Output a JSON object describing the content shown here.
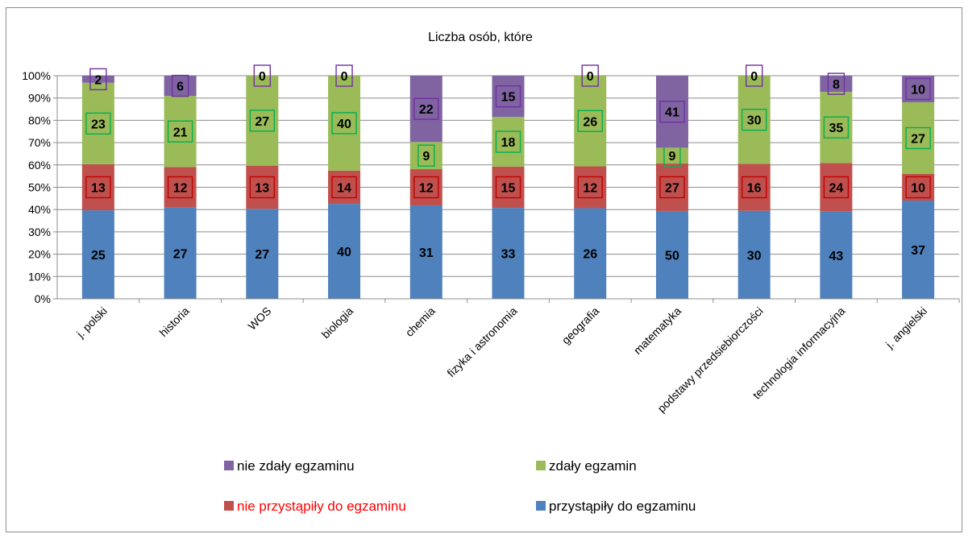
{
  "chart_data": {
    "type": "bar",
    "stacking": "percent",
    "title": "Liczba osób, które",
    "categories": [
      "j. polski",
      "historia",
      "WOS",
      "biologia",
      "chemia",
      "fizyka i astronomia",
      "geografia",
      "matematyka",
      "podstawy przedsiebiorczości",
      "technologia informacyjna",
      "j. angielski"
    ],
    "y_ticks": [
      "0%",
      "10%",
      "20%",
      "30%",
      "40%",
      "50%",
      "60%",
      "70%",
      "80%",
      "90%",
      "100%"
    ],
    "ylim": [
      0,
      100
    ],
    "grid": true,
    "legend_position": "bottom",
    "series": [
      {
        "name": "przystąpiły do egzaminu",
        "color": "#4f81bd",
        "label_box": "none",
        "values": [
          25,
          27,
          27,
          40,
          31,
          33,
          26,
          50,
          30,
          43,
          37
        ]
      },
      {
        "name": "nie przystąpiły do egzaminu",
        "color": "#c0504d",
        "label_box": "#c00000",
        "legend_text_color": "#ff0000",
        "values": [
          13,
          12,
          13,
          14,
          12,
          15,
          12,
          27,
          16,
          24,
          10
        ]
      },
      {
        "name": "zdały egzamin",
        "color": "#9bbb59",
        "label_box": "#00b050",
        "values": [
          23,
          21,
          27,
          40,
          9,
          18,
          26,
          9,
          30,
          35,
          27
        ]
      },
      {
        "name": "nie zdały egzaminu",
        "color": "#8064a2",
        "label_box": "#7030a0",
        "values": [
          2,
          6,
          0,
          0,
          22,
          15,
          0,
          41,
          0,
          8,
          10
        ]
      }
    ]
  }
}
